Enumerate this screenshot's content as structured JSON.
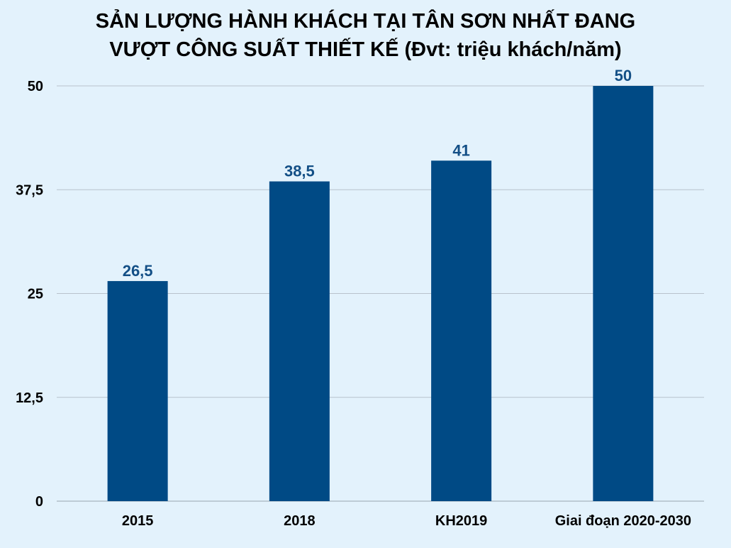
{
  "chart_data": {
    "type": "bar",
    "title": "SẢN LƯỢNG HÀNH KHÁCH TẠI TÂN SƠN NHẤT ĐANG VƯỢT CÔNG SUẤT THIẾT KẾ (Đvt: triệu khách/năm)",
    "title_lines": [
      "SẢN LƯỢNG HÀNH KHÁCH TẠI TÂN SƠN NHẤT ĐANG",
      "VƯỢT CÔNG SUẤT THIẾT KẾ (Đvt: triệu khách/năm)"
    ],
    "categories": [
      "2015",
      "2018",
      "KH2019",
      "Giai đoạn 2020-2030"
    ],
    "values": [
      26.5,
      38.5,
      41,
      50
    ],
    "data_labels": [
      "26,5",
      "38,5",
      "41",
      "50"
    ],
    "xlabel": "",
    "ylabel": "",
    "ylim": [
      0,
      50
    ],
    "yticks": [
      0,
      12.5,
      25,
      37.5,
      50
    ],
    "ytick_labels": [
      "0",
      "12,5",
      "25",
      "37,5",
      "50"
    ],
    "grid": true,
    "legend": "none",
    "colors": {
      "bar": "#004a85",
      "data_label": "#134f86",
      "grid": "#b8c2cc",
      "background": "#e3f2fc"
    }
  }
}
